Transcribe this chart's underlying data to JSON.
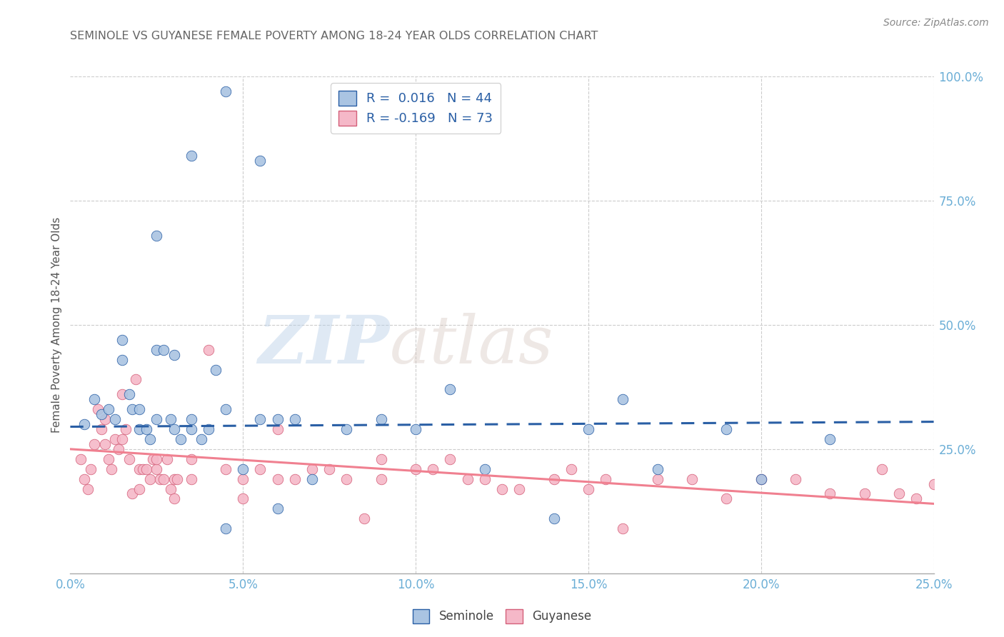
{
  "title": "SEMINOLE VS GUYANESE FEMALE POVERTY AMONG 18-24 YEAR OLDS CORRELATION CHART",
  "source": "Source: ZipAtlas.com",
  "ylabel": "Female Poverty Among 18-24 Year Olds",
  "xlim": [
    0,
    25
  ],
  "ylim": [
    0,
    100
  ],
  "seminole_color": "#aac4e2",
  "guyanese_color": "#f5b8c8",
  "seminole_line_color": "#2a5fa5",
  "guyanese_line_color": "#f08090",
  "axis_color": "#6baed6",
  "title_color": "#666666",
  "seminole_x": [
    0.4,
    0.7,
    0.9,
    1.1,
    1.3,
    1.5,
    1.7,
    1.8,
    2.0,
    2.0,
    2.2,
    2.3,
    2.5,
    2.5,
    2.7,
    2.9,
    3.0,
    3.0,
    3.2,
    3.5,
    3.5,
    3.8,
    4.0,
    4.2,
    4.5,
    4.5,
    5.0,
    5.5,
    6.0,
    6.0,
    6.5,
    7.0,
    8.0,
    9.0,
    10.0,
    11.0,
    12.0,
    14.0,
    15.0,
    16.0,
    17.0,
    19.0,
    20.0,
    22.0
  ],
  "seminole_y": [
    30,
    35,
    32,
    33,
    31,
    43,
    36,
    33,
    33,
    29,
    29,
    27,
    45,
    31,
    45,
    31,
    29,
    44,
    27,
    29,
    31,
    27,
    29,
    41,
    33,
    9,
    21,
    31,
    31,
    13,
    31,
    19,
    29,
    31,
    29,
    37,
    21,
    11,
    29,
    35,
    21,
    29,
    19,
    27
  ],
  "seminole_outlier_x": [
    1.5,
    2.5,
    3.5,
    4.5,
    5.5
  ],
  "seminole_outlier_y": [
    47,
    68,
    84,
    97,
    83
  ],
  "guyanese_x": [
    0.3,
    0.4,
    0.5,
    0.6,
    0.7,
    0.8,
    0.9,
    1.0,
    1.0,
    1.1,
    1.2,
    1.3,
    1.4,
    1.5,
    1.5,
    1.6,
    1.7,
    1.8,
    1.9,
    2.0,
    2.0,
    2.1,
    2.2,
    2.3,
    2.4,
    2.5,
    2.5,
    2.6,
    2.7,
    2.8,
    2.9,
    3.0,
    3.0,
    3.1,
    3.5,
    3.5,
    4.0,
    4.5,
    5.0,
    5.0,
    5.5,
    6.0,
    6.0,
    6.5,
    7.0,
    7.5,
    8.0,
    8.5,
    9.0,
    9.0,
    10.0,
    10.5,
    11.0,
    11.5,
    12.0,
    12.5,
    13.0,
    14.0,
    14.5,
    15.0,
    15.5,
    16.0,
    17.0,
    18.0,
    19.0,
    20.0,
    21.0,
    22.0,
    23.0,
    23.5,
    24.0,
    24.5,
    25.0
  ],
  "guyanese_y": [
    23,
    19,
    17,
    21,
    26,
    33,
    29,
    26,
    31,
    23,
    21,
    27,
    25,
    27,
    36,
    29,
    23,
    16,
    39,
    17,
    21,
    21,
    21,
    19,
    23,
    21,
    23,
    19,
    19,
    23,
    17,
    19,
    15,
    19,
    23,
    19,
    45,
    21,
    19,
    15,
    21,
    29,
    19,
    19,
    21,
    21,
    19,
    11,
    23,
    19,
    21,
    21,
    23,
    19,
    19,
    17,
    17,
    19,
    21,
    17,
    19,
    9,
    19,
    19,
    15,
    19,
    19,
    16,
    16,
    21,
    16,
    15,
    18
  ],
  "blue_trend_x": [
    0,
    25
  ],
  "blue_trend_y": [
    29.5,
    30.5
  ],
  "pink_trend_x": [
    0,
    25
  ],
  "pink_trend_y": [
    25.0,
    14.0
  ],
  "xticks": [
    0,
    5,
    10,
    15,
    20,
    25
  ],
  "xticklabels": [
    "0.0%",
    "5.0%",
    "10.0%",
    "15.0%",
    "20.0%",
    "25.0%"
  ],
  "yticks": [
    25,
    50,
    75,
    100
  ],
  "yticklabels": [
    "25.0%",
    "50.0%",
    "75.0%",
    "100.0%"
  ]
}
